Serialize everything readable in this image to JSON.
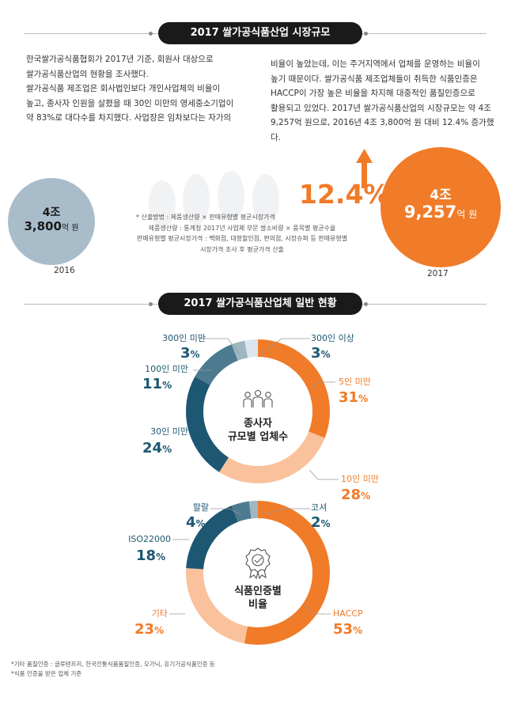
{
  "section1": {
    "title": "2017 쌀가공식품산업 시장규모",
    "para_left": [
      "한국쌀가공식품협회가 2017년 기준, 회원사 대상으로",
      "쌀가공식품산업의 현황을 조사했다.",
      "쌀가공식품 제조업은 회사법인보다 개인사업체의 비율이",
      "높고, 종사자 인원을 살폈을 때 30인 미만의 영세중소기업이",
      "약 83%로 대다수를 차지했다. 사업장은 임차보다는 자가의"
    ],
    "para_right": [
      "비율이 높았는데, 이는 주거지역에서 업체를 운영하는 비율이",
      "높기 때문이다. 쌀가공식품 제조업체들이 취득한 식품인증은",
      "HACCP이 가장 높은 비율을 차지해 대중적인 품질인증으로",
      "활용되고 있었다. 2017년 쌀가공식품산업의 시장규모는 약 4조",
      "9,257억 원으로, 2016년 4조 3,800억 원 대비 12.4% 증가했다."
    ],
    "y2016": {
      "line1": "4조",
      "line2_num": "3,800",
      "line2_unit": "억 원",
      "year": "2016"
    },
    "y2017": {
      "line1": "4조",
      "line2_num": "9,257",
      "line2_unit": "억 원",
      "year": "2017"
    },
    "growth": "12.4%",
    "notes": [
      "* 산출방법 : 제품생산량 × 판매유형별 평균시장가격",
      "제품생산량 : 통계청 2017년 사업체 부문 쌀소비량 × 품목별 평균수율",
      "판매유형별 평균시장가격 : 백화점, 대형할인점, 편의점, 시장슈퍼 등 판매유형별",
      "시장가격 조사 후 평균가격 산출"
    ],
    "colors": {
      "year2016": "#a9bcca",
      "year2017": "#f07b28",
      "arrow": "#f07b28"
    }
  },
  "section2": {
    "title": "2017 쌀가공식품산업체 일반 현황"
  },
  "chart_data": [
    {
      "type": "pie",
      "title": "종사자 규모별 업체수",
      "categories": [
        "5인 미만",
        "10인 미만",
        "30인 미만",
        "100인 미만",
        "300인 미만",
        "300인 이상"
      ],
      "values": [
        31,
        28,
        24,
        11,
        3,
        3
      ],
      "labels": [
        "31",
        "28",
        "24",
        "11",
        "3",
        "3"
      ],
      "unit": "%",
      "colors": [
        "#f07b28",
        "#f9c29c",
        "#1d5771",
        "#4c7b90",
        "#9fb6c3",
        "#dce6ec"
      ]
    },
    {
      "type": "pie",
      "title": "식품인증별 비율",
      "categories": [
        "HACCP",
        "기타",
        "ISO22000",
        "할랄",
        "코셔"
      ],
      "values": [
        53,
        23,
        18,
        4,
        2
      ],
      "labels": [
        "53",
        "23",
        "18",
        "4",
        "2"
      ],
      "unit": "%",
      "colors": [
        "#f07b28",
        "#f9c29c",
        "#1d5771",
        "#4c7b90",
        "#9fb6c3"
      ]
    }
  ],
  "chart_titles": {
    "c1_line1": "종사자",
    "c1_line2": "규모별 업체수",
    "c2_line1": "식품인증별",
    "c2_line2": "비율"
  },
  "footnotes": [
    "*기타 품질인증 : 글루텐프리, 한국전통식품품질인증, 오가닉, 유기가공식품인증 등",
    "*식품 인증을 받은 업체 기준"
  ]
}
